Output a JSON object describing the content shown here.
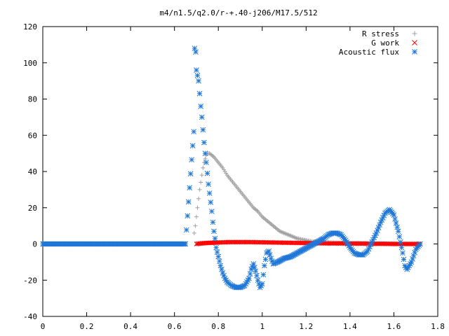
{
  "chart_data": {
    "type": "scatter",
    "title": "m4/n1.5/q2.0/r-+.40-j206/M17.5/512",
    "xlabel": "",
    "ylabel": "",
    "xlim": [
      0,
      1.8
    ],
    "ylim": [
      -40,
      120
    ],
    "x_ticks": [
      "0",
      "0.2",
      "0.4",
      "0.6",
      "0.8",
      "1",
      "1.2",
      "1.4",
      "1.6",
      "1.8"
    ],
    "y_ticks": [
      "-40",
      "-20",
      "0",
      "20",
      "40",
      "60",
      "80",
      "100",
      "120"
    ],
    "grid": false,
    "legend_position": "top-right",
    "series": [
      {
        "name": "R stress",
        "marker": "+",
        "color": "#a0a0a0",
        "points": [
          [
            0.69,
            6
          ],
          [
            0.695,
            10
          ],
          [
            0.7,
            15
          ],
          [
            0.705,
            20
          ],
          [
            0.71,
            25
          ],
          [
            0.715,
            30
          ],
          [
            0.72,
            34
          ],
          [
            0.725,
            38
          ],
          [
            0.73,
            42
          ],
          [
            0.735,
            45
          ],
          [
            0.74,
            47
          ],
          [
            0.745,
            49
          ],
          [
            0.75,
            50
          ],
          [
            0.76,
            50
          ],
          [
            0.77,
            49
          ],
          [
            0.78,
            48
          ],
          [
            0.8,
            45
          ],
          [
            0.82,
            42
          ],
          [
            0.84,
            38
          ],
          [
            0.86,
            35
          ],
          [
            0.88,
            32
          ],
          [
            0.9,
            29
          ],
          [
            0.92,
            26
          ],
          [
            0.94,
            23
          ],
          [
            0.96,
            20
          ],
          [
            0.98,
            18
          ],
          [
            1.0,
            15
          ],
          [
            1.02,
            13
          ],
          [
            1.04,
            11
          ],
          [
            1.06,
            9
          ],
          [
            1.08,
            7
          ],
          [
            1.1,
            6
          ],
          [
            1.12,
            5
          ],
          [
            1.14,
            4
          ],
          [
            1.16,
            3
          ],
          [
            1.18,
            2.5
          ],
          [
            1.2,
            2
          ],
          [
            1.22,
            1.5
          ],
          [
            1.25,
            1.2
          ],
          [
            1.28,
            1
          ],
          [
            1.32,
            0.8
          ],
          [
            1.36,
            0.6
          ],
          [
            1.4,
            0.5
          ],
          [
            1.45,
            0.4
          ],
          [
            1.5,
            0.3
          ],
          [
            1.55,
            0.2
          ],
          [
            1.6,
            0.1
          ],
          [
            1.65,
            0
          ],
          [
            1.7,
            0
          ],
          [
            1.72,
            0
          ]
        ]
      },
      {
        "name": "G work",
        "marker": "x",
        "color": "#ff0000",
        "points": [
          [
            0.7,
            0
          ],
          [
            0.72,
            0.3
          ],
          [
            0.74,
            0.5
          ],
          [
            0.76,
            0.6
          ],
          [
            0.78,
            0.7
          ],
          [
            0.8,
            0.8
          ],
          [
            0.85,
            1
          ],
          [
            0.9,
            1
          ],
          [
            0.95,
            1
          ],
          [
            1.0,
            0.9
          ],
          [
            1.05,
            0.8
          ],
          [
            1.1,
            0.7
          ],
          [
            1.15,
            0.6
          ],
          [
            1.2,
            0.5
          ],
          [
            1.25,
            0.4
          ],
          [
            1.3,
            0.3
          ],
          [
            1.35,
            0.3
          ],
          [
            1.4,
            0.2
          ],
          [
            1.45,
            0.2
          ],
          [
            1.5,
            0.1
          ],
          [
            1.55,
            0.1
          ],
          [
            1.6,
            0
          ],
          [
            1.65,
            0
          ],
          [
            1.7,
            0
          ],
          [
            1.72,
            0
          ]
        ]
      },
      {
        "name": "Acoustic flux",
        "marker": "*",
        "color": "#1f77d8",
        "points": [
          [
            0.0,
            0
          ],
          [
            0.1,
            0
          ],
          [
            0.2,
            0
          ],
          [
            0.3,
            0
          ],
          [
            0.4,
            0
          ],
          [
            0.5,
            0
          ],
          [
            0.6,
            0
          ],
          [
            0.65,
            0
          ],
          [
            0.688,
            62
          ],
          [
            0.692,
            108
          ],
          [
            0.697,
            106
          ],
          [
            0.7,
            96
          ],
          [
            0.705,
            93
          ],
          [
            0.71,
            90
          ],
          [
            0.715,
            83
          ],
          [
            0.72,
            76
          ],
          [
            0.725,
            70
          ],
          [
            0.73,
            63
          ],
          [
            0.735,
            56
          ],
          [
            0.74,
            50
          ],
          [
            0.745,
            45
          ],
          [
            0.75,
            39
          ],
          [
            0.755,
            33
          ],
          [
            0.76,
            28
          ],
          [
            0.765,
            23
          ],
          [
            0.77,
            18
          ],
          [
            0.775,
            12
          ],
          [
            0.78,
            7
          ],
          [
            0.785,
            3
          ],
          [
            0.79,
            -2
          ],
          [
            0.8,
            -7
          ],
          [
            0.81,
            -12
          ],
          [
            0.82,
            -16
          ],
          [
            0.83,
            -19
          ],
          [
            0.84,
            -21
          ],
          [
            0.86,
            -23
          ],
          [
            0.88,
            -24
          ],
          [
            0.9,
            -24
          ],
          [
            0.92,
            -23
          ],
          [
            0.94,
            -19
          ],
          [
            0.95,
            -14
          ],
          [
            0.96,
            -11
          ],
          [
            0.97,
            -15
          ],
          [
            0.98,
            -20
          ],
          [
            0.99,
            -24
          ],
          [
            1.0,
            -22
          ],
          [
            1.01,
            -12
          ],
          [
            1.02,
            -5
          ],
          [
            1.03,
            -4
          ],
          [
            1.04,
            -8
          ],
          [
            1.05,
            -11
          ],
          [
            1.07,
            -10
          ],
          [
            1.1,
            -8
          ],
          [
            1.13,
            -7
          ],
          [
            1.16,
            -5
          ],
          [
            1.19,
            -3
          ],
          [
            1.22,
            -1
          ],
          [
            1.25,
            1
          ],
          [
            1.28,
            3
          ],
          [
            1.3,
            5
          ],
          [
            1.32,
            6
          ],
          [
            1.34,
            6
          ],
          [
            1.36,
            5
          ],
          [
            1.38,
            2
          ],
          [
            1.4,
            -2
          ],
          [
            1.42,
            -5
          ],
          [
            1.44,
            -6
          ],
          [
            1.46,
            -6
          ],
          [
            1.48,
            -4
          ],
          [
            1.5,
            1
          ],
          [
            1.52,
            6
          ],
          [
            1.54,
            12
          ],
          [
            1.56,
            17
          ],
          [
            1.58,
            19
          ],
          [
            1.6,
            16
          ],
          [
            1.62,
            7
          ],
          [
            1.64,
            -5
          ],
          [
            1.65,
            -12
          ],
          [
            1.66,
            -14
          ],
          [
            1.68,
            -10
          ],
          [
            1.7,
            -3
          ],
          [
            1.72,
            0
          ]
        ]
      }
    ]
  }
}
